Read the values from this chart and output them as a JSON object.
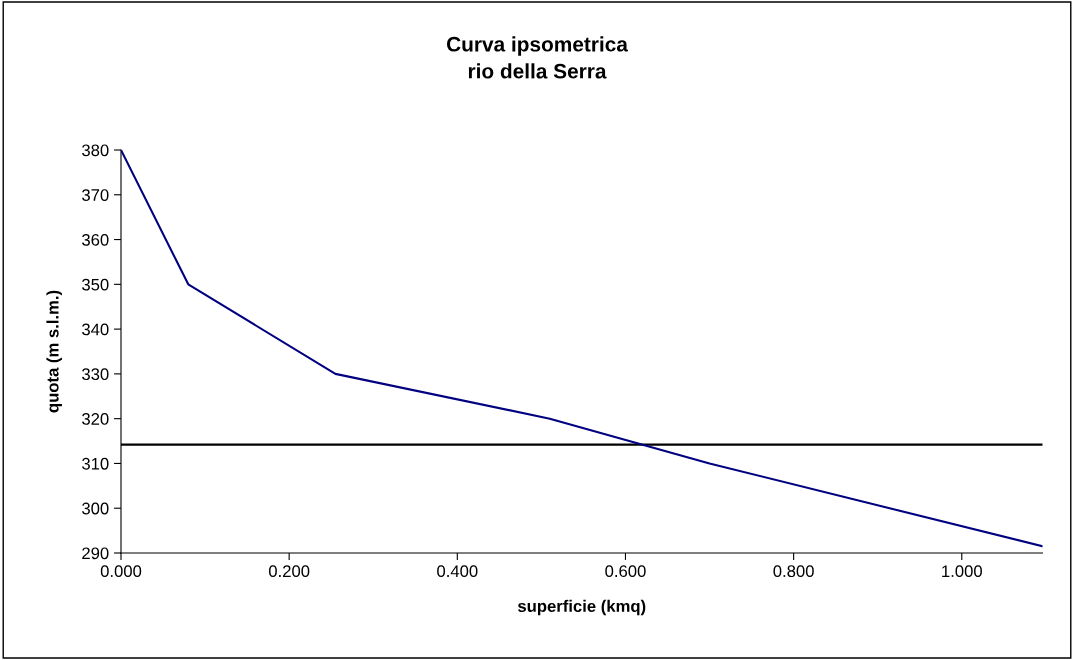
{
  "chart_data": {
    "type": "line",
    "title": "Curva ipsometrica\nrio della Serra",
    "xlabel": "superficie (kmq)",
    "ylabel": "quota (m s.l.m.)",
    "x": [
      0,
      0.08,
      0.255,
      0.51,
      0.7,
      1.096
    ],
    "series": [
      {
        "color": "#000080",
        "values": [
          380,
          350,
          330,
          320,
          310,
          291.5
        ]
      }
    ],
    "xlim": [
      0,
      1.096
    ],
    "ylim": [
      290,
      380
    ],
    "xticks": [
      {
        "value": 0,
        "label": "0.000"
      },
      {
        "value": 0.2,
        "label": "0.200"
      },
      {
        "value": 0.4,
        "label": "0.400"
      },
      {
        "value": 0.6,
        "label": "0.600"
      },
      {
        "value": 0.8,
        "label": "0.800"
      },
      {
        "value": 1.0,
        "label": "1.000"
      }
    ],
    "yticks": [
      290,
      300,
      310,
      320,
      330,
      340,
      350,
      360,
      370,
      380
    ],
    "ref_lines": [
      {
        "axis": "y",
        "value": 314.2,
        "color": "#000000"
      }
    ],
    "grid": false,
    "legend": false,
    "marker": "none",
    "line_style": "solid"
  }
}
